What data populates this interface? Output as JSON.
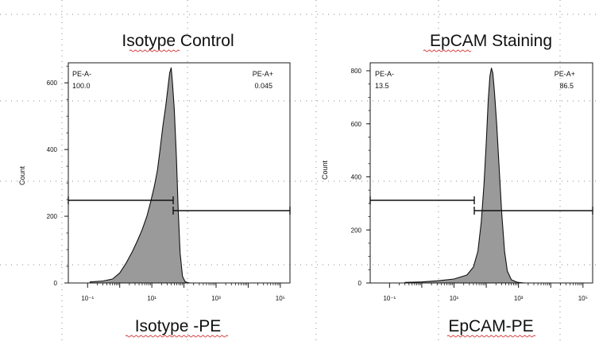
{
  "chart_data": [
    {
      "type": "histogram",
      "title": "Isotype Control",
      "xlabel": "Isotype -PE",
      "ylabel": "Count",
      "x_scale": "log",
      "x_tick_labels": [
        "10⁻¹",
        "10¹",
        "10³",
        "10⁵"
      ],
      "y_ticks": [
        0,
        200,
        400,
        600
      ],
      "ylim": [
        0,
        660
      ],
      "gates": [
        {
          "name": "PE-A-",
          "value": "100.0"
        },
        {
          "name": "PE-A+",
          "value": "0.045"
        }
      ],
      "histogram": [
        [
          0.12,
          3
        ],
        [
          0.3,
          6
        ],
        [
          0.6,
          12
        ],
        [
          1.0,
          30
        ],
        [
          1.6,
          60
        ],
        [
          2.5,
          95
        ],
        [
          3.5,
          125
        ],
        [
          5.0,
          160
        ],
        [
          7.0,
          200
        ],
        [
          9.0,
          240
        ],
        [
          12,
          290
        ],
        [
          15,
          340
        ],
        [
          18,
          400
        ],
        [
          22,
          470
        ],
        [
          27,
          530
        ],
        [
          32,
          590
        ],
        [
          36,
          630
        ],
        [
          40,
          645
        ],
        [
          44,
          600
        ],
        [
          50,
          520
        ],
        [
          58,
          380
        ],
        [
          66,
          220
        ],
        [
          76,
          90
        ],
        [
          90,
          20
        ],
        [
          110,
          3
        ],
        [
          150,
          0
        ]
      ]
    },
    {
      "type": "histogram",
      "title": "EpCAM Staining",
      "xlabel": "EpCAM-PE",
      "ylabel": "Count",
      "x_scale": "log",
      "x_tick_labels": [
        "10⁻¹",
        "10¹",
        "10³",
        "10⁵"
      ],
      "y_ticks": [
        0,
        200,
        400,
        600,
        800
      ],
      "ylim": [
        0,
        830
      ],
      "gates": [
        {
          "name": "PE-A-",
          "value": "13.5"
        },
        {
          "name": "PE-A+",
          "value": "86.5"
        }
      ],
      "histogram": [
        [
          0.3,
          2
        ],
        [
          1.0,
          4
        ],
        [
          3.0,
          8
        ],
        [
          10,
          15
        ],
        [
          25,
          30
        ],
        [
          40,
          60
        ],
        [
          55,
          120
        ],
        [
          70,
          230
        ],
        [
          85,
          370
        ],
        [
          100,
          530
        ],
        [
          115,
          690
        ],
        [
          130,
          780
        ],
        [
          145,
          810
        ],
        [
          160,
          790
        ],
        [
          180,
          720
        ],
        [
          210,
          600
        ],
        [
          250,
          440
        ],
        [
          300,
          270
        ],
        [
          370,
          120
        ],
        [
          450,
          45
        ],
        [
          600,
          12
        ],
        [
          900,
          3
        ],
        [
          1500,
          0
        ]
      ]
    }
  ]
}
